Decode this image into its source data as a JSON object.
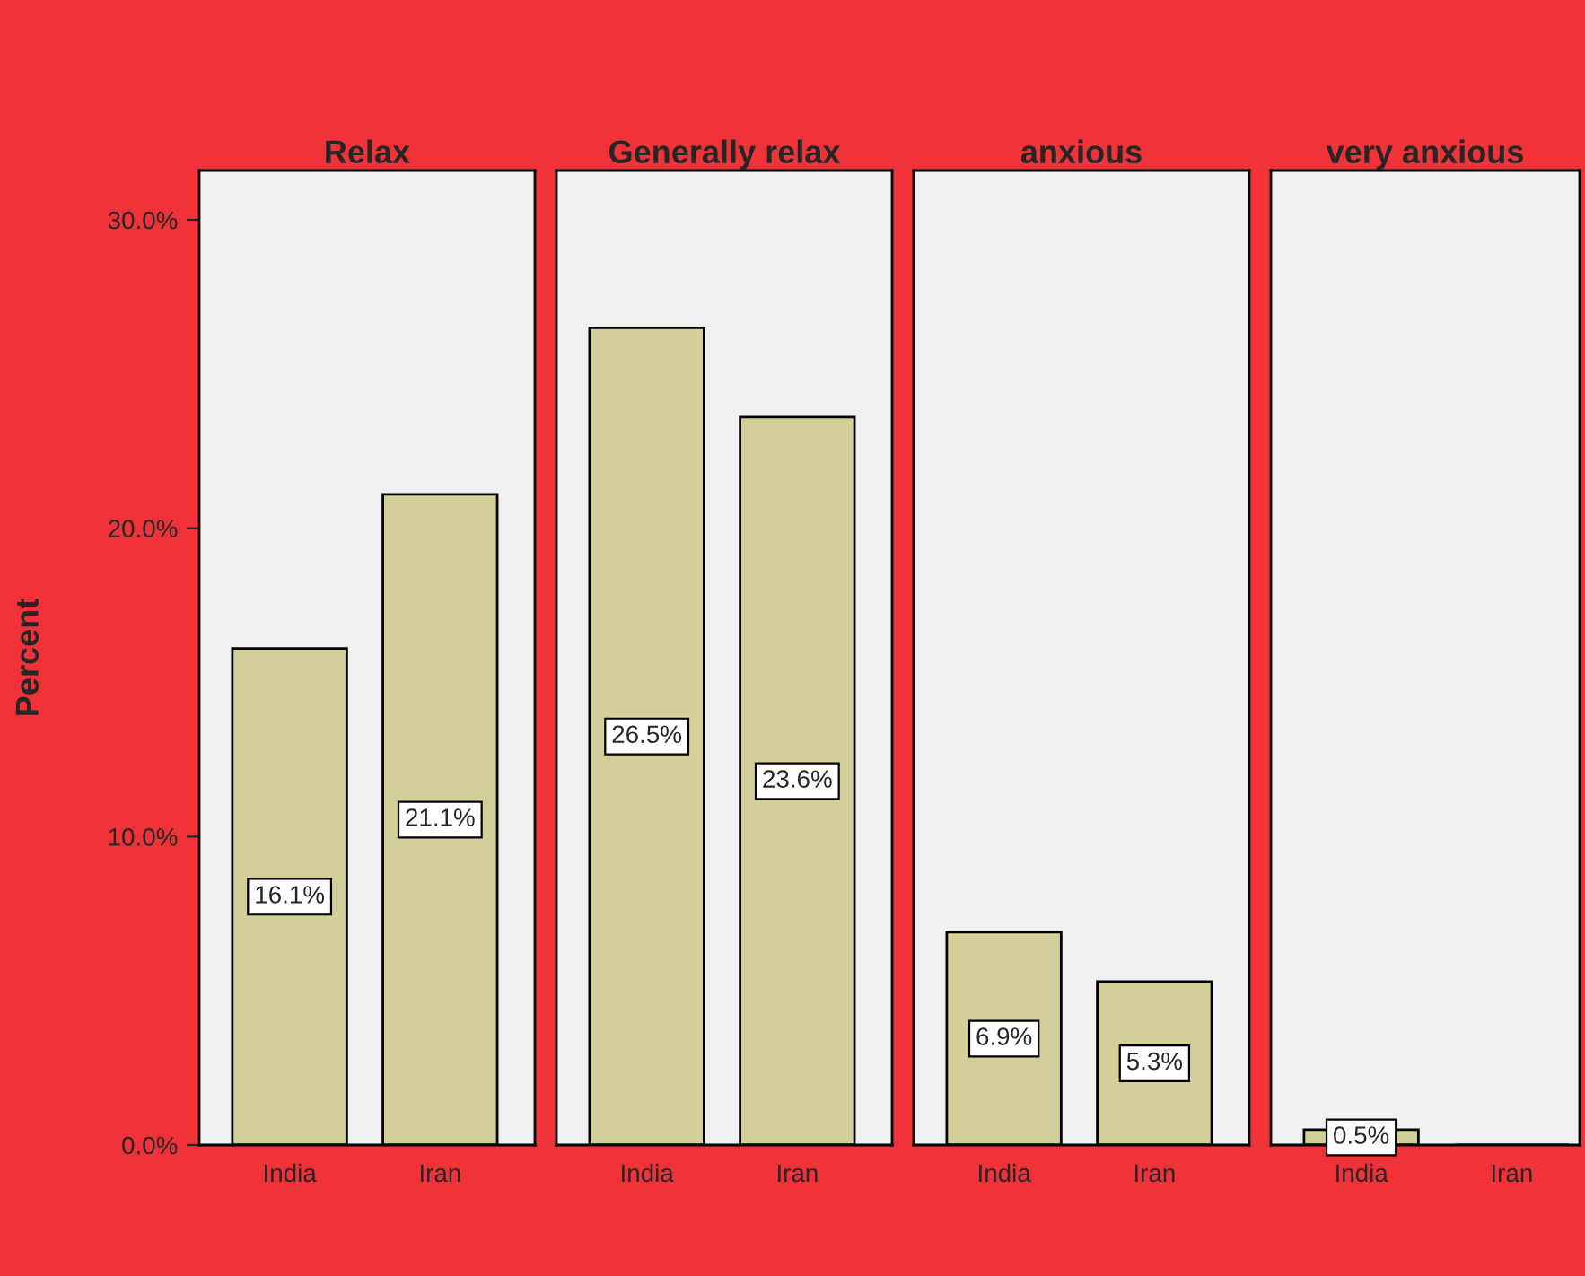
{
  "chart_data": [
    {
      "type": "bar",
      "title": "Relax",
      "ylabel": "Percent",
      "categories": [
        "India",
        "Iran"
      ],
      "values": [
        16.1,
        21.1
      ],
      "color": "#d4cf98",
      "value_labels": [
        "16.1%",
        "21.1%"
      ],
      "ylim": [
        0,
        31.6
      ],
      "yticks": [
        {
          "value": 0,
          "label": "0.0%"
        },
        {
          "value": 10,
          "label": "10.0%"
        },
        {
          "value": 20,
          "label": "20.0%"
        },
        {
          "value": 30,
          "label": "30.0%"
        }
      ]
    },
    {
      "type": "bar",
      "title": "Generally relax",
      "categories": [
        "India",
        "Iran"
      ],
      "values": [
        26.5,
        23.6
      ],
      "color": "#d4cf98",
      "value_labels": [
        "26.5%",
        "23.6%"
      ],
      "ylim": [
        0,
        31.6
      ],
      "tick_labels": "x"
    },
    {
      "type": "bar",
      "title": "anxious",
      "categories": [
        "India",
        "Iran"
      ],
      "values": [
        6.9,
        5.3
      ],
      "color": "#d4cf98",
      "value_labels": [
        "6.9%",
        "5.3%"
      ],
      "ylim": [
        0,
        31.6
      ],
      "tick_labels": "x"
    },
    {
      "type": "bar",
      "title": "very anxious",
      "categories": [
        "India",
        "Iran"
      ],
      "values": [
        0.5,
        0
      ],
      "color": "#d4cf98",
      "value_labels": [
        "0.5%",
        null
      ],
      "ylim": [
        0,
        31.6
      ],
      "tick_labels": "x"
    }
  ]
}
